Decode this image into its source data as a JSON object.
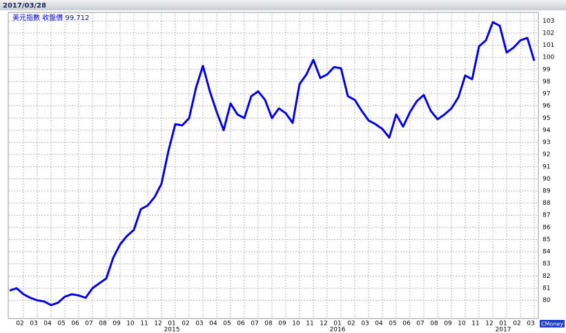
{
  "chart_data": {
    "type": "line",
    "title": "2017/03/28",
    "watermark": "CMoney",
    "categories": [
      null,
      "02",
      null,
      "03",
      null,
      "04",
      null,
      "05",
      null,
      "06",
      null,
      "07",
      null,
      "08",
      null,
      "09",
      null,
      "10",
      null,
      "11",
      null,
      "12",
      null,
      "01",
      null,
      "02",
      null,
      "03",
      null,
      "04",
      null,
      "05",
      null,
      "06",
      null,
      "07",
      null,
      "08",
      null,
      "09",
      null,
      "10",
      null,
      "11",
      null,
      "12",
      null,
      "01",
      null,
      "02",
      null,
      "03",
      null,
      "04",
      null,
      "05",
      null,
      "06",
      null,
      "07",
      null,
      "08",
      null,
      "09",
      null,
      "10",
      null,
      "11",
      null,
      "12",
      null,
      "01",
      null,
      "02",
      null,
      "03",
      null
    ],
    "years": [
      null,
      null,
      null,
      null,
      null,
      null,
      null,
      null,
      null,
      null,
      null,
      null,
      null,
      null,
      null,
      null,
      null,
      null,
      null,
      null,
      null,
      null,
      null,
      "2015",
      null,
      null,
      null,
      null,
      null,
      null,
      null,
      null,
      null,
      null,
      null,
      null,
      null,
      null,
      null,
      null,
      null,
      null,
      null,
      null,
      null,
      null,
      null,
      "2016",
      null,
      null,
      null,
      null,
      null,
      null,
      null,
      null,
      null,
      null,
      null,
      null,
      null,
      null,
      null,
      null,
      null,
      null,
      null,
      null,
      null,
      null,
      null,
      "2017",
      null,
      null,
      null,
      null,
      null
    ],
    "series": [
      {
        "name": "美元指數 收盤價 99.712",
        "color": "#0000ee",
        "values": [
          80.8,
          81.0,
          80.5,
          80.2,
          80.0,
          79.9,
          79.6,
          79.8,
          80.3,
          80.5,
          80.4,
          80.2,
          81.0,
          81.4,
          81.8,
          83.5,
          84.6,
          85.3,
          85.8,
          87.5,
          87.8,
          88.5,
          89.6,
          92.3,
          94.5,
          94.4,
          95.0,
          97.5,
          99.3,
          97.2,
          95.5,
          94.0,
          96.2,
          95.3,
          95.0,
          96.8,
          97.2,
          96.5,
          95.0,
          95.8,
          95.4,
          94.6,
          97.8,
          98.6,
          99.8,
          98.3,
          98.6,
          99.2,
          99.1,
          96.8,
          96.5,
          95.6,
          94.8,
          94.5,
          94.1,
          93.4,
          95.3,
          94.3,
          95.5,
          96.4,
          96.9,
          95.6,
          94.9,
          95.3,
          95.8,
          96.7,
          98.5,
          98.2,
          100.9,
          101.4,
          102.9,
          102.6,
          100.4,
          100.8,
          101.4,
          101.6,
          99.712
        ]
      }
    ],
    "ylim": [
      78.5,
      103.7
    ],
    "yticks": [
      80,
      81,
      82,
      83,
      84,
      85,
      86,
      87,
      88,
      89,
      90,
      91,
      92,
      93,
      94,
      95,
      96,
      97,
      98,
      99,
      100,
      101,
      102,
      103
    ],
    "grid": true
  }
}
